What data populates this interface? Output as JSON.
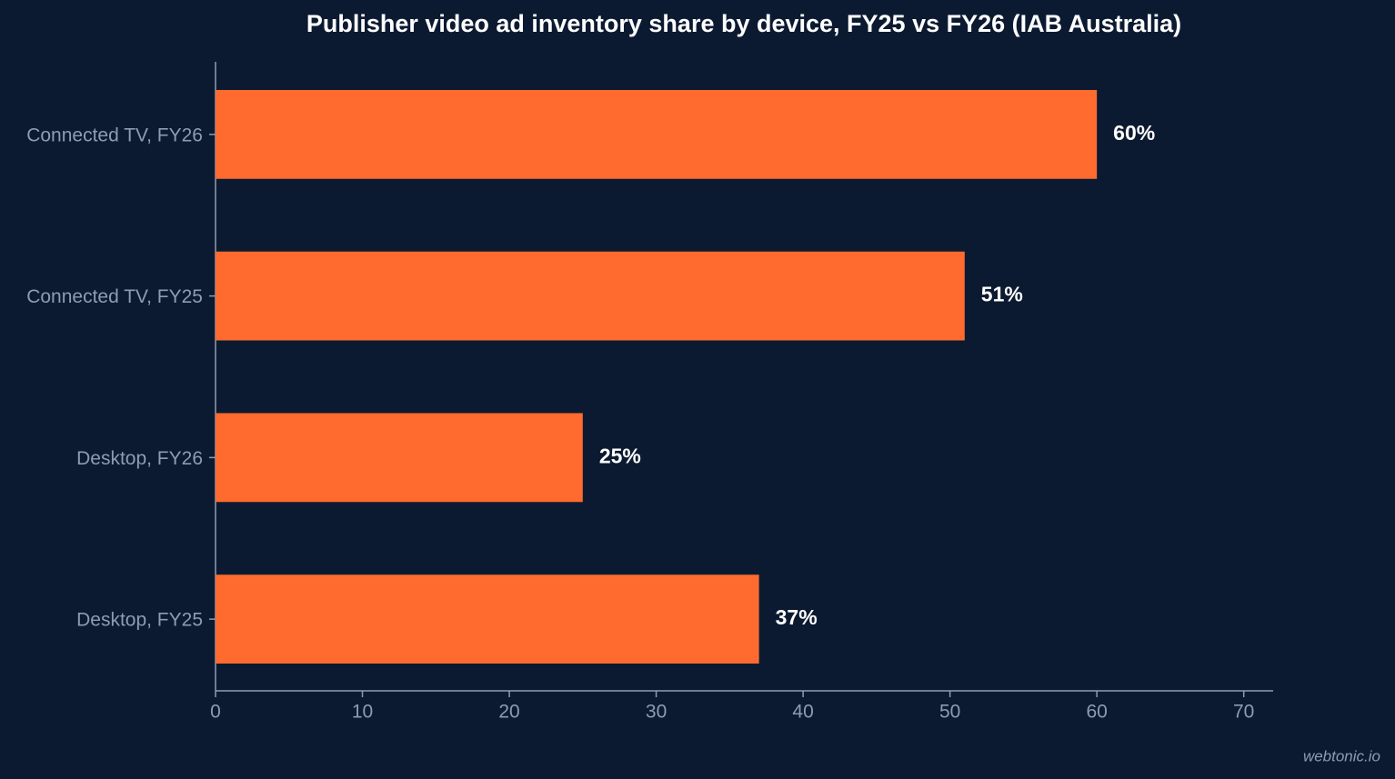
{
  "chart_data": {
    "type": "barh",
    "title": "Publisher video ad inventory share by device, FY25 vs FY26 (IAB Australia)",
    "categories": [
      "Connected TV, FY26",
      "Connected TV, FY25",
      "Desktop, FY26",
      "Desktop, FY25"
    ],
    "values": [
      60,
      51,
      25,
      37
    ],
    "value_labels": [
      "60%",
      "51%",
      "25%",
      "37%"
    ],
    "color": "#ff6b2f",
    "xlim": [
      0,
      72
    ],
    "xticks": [
      0,
      10,
      20,
      30,
      40,
      50,
      60,
      70
    ],
    "grid": false,
    "watermark": "webtonic.io"
  }
}
